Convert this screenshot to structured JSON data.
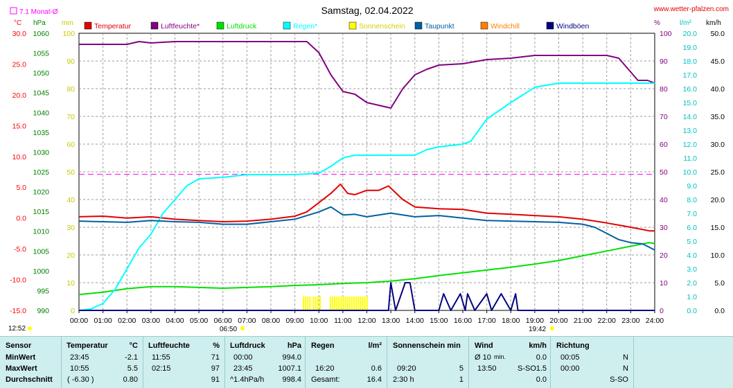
{
  "title": "Samstag, 02.04.2022",
  "source": "www.wetter-pfalzen.com",
  "monthly_avg_label": "7.1 Monat-Ø",
  "axis_units": {
    "temp": "°C",
    "press": "hPa",
    "mm": "mm",
    "percent": "%",
    "rain": "l/m²",
    "wind": "km/h"
  },
  "legend": [
    {
      "label": "Temperatur",
      "color": "#e00000"
    },
    {
      "label": "Luftfeuchte*",
      "color": "#800080"
    },
    {
      "label": "Luftdruck",
      "color": "#00e000"
    },
    {
      "label": "Regen*",
      "color": "#00ffff"
    },
    {
      "label": "Sonnenschein",
      "color": "#ffff00"
    },
    {
      "label": "Taupunkt",
      "color": "#0060a0"
    },
    {
      "label": "Windchill",
      "color": "#ff8000"
    },
    {
      "label": "Windböen",
      "color": "#000080"
    }
  ],
  "sunrise_label": "06:50",
  "sunset_label": "19:42",
  "first_time_label": "12:52",
  "chart_data": {
    "type": "line",
    "x_ticks": [
      "00:00",
      "01:00",
      "02:00",
      "03:00",
      "04:00",
      "05:00",
      "06:00",
      "07:00",
      "08:00",
      "09:00",
      "10:00",
      "11:00",
      "12:00",
      "13:00",
      "14:00",
      "15:00",
      "16:00",
      "17:00",
      "18:00",
      "19:00",
      "20:00",
      "21:00",
      "22:00",
      "23:00",
      "24:00"
    ],
    "axes": {
      "temp": {
        "ticks": [
          "30.0",
          "25.0",
          "20.0",
          "15.0",
          "10.0",
          "5.0",
          "0.0",
          "-5.0",
          "-10.0",
          "-15.0"
        ],
        "color": "#ff0000"
      },
      "press": {
        "ticks": [
          "1060",
          "1055",
          "1050",
          "1045",
          "1040",
          "1035",
          "1030",
          "1025",
          "1020",
          "1015",
          "1010",
          "1005",
          "1000",
          "995",
          "990"
        ],
        "color": "#008000"
      },
      "mm": {
        "ticks": [
          "100",
          "90",
          "80",
          "70",
          "60",
          "50",
          "40",
          "30",
          "20",
          "10",
          "0"
        ],
        "color": "#c8c800"
      },
      "percent": {
        "ticks": [
          "100",
          "90",
          "80",
          "70",
          "60",
          "50",
          "40",
          "30",
          "20",
          "10",
          "0"
        ],
        "color": "#800080"
      },
      "rain": {
        "ticks": [
          "20.0",
          "19.0",
          "18.0",
          "17.0",
          "16.0",
          "15.0",
          "14.0",
          "13.0",
          "12.0",
          "11.0",
          "10.0",
          "9.0",
          "8.0",
          "7.0",
          "6.0",
          "5.0",
          "4.0",
          "3.0",
          "2.0",
          "1.0",
          "0.0"
        ],
        "color": "#00c0c0"
      },
      "wind": {
        "ticks": [
          "50.0",
          "45.0",
          "40.0",
          "35.0",
          "30.0",
          "25.0",
          "20.0",
          "15.0",
          "10.0",
          "5.0",
          "0.0"
        ],
        "color": "#000000"
      }
    },
    "series": [
      {
        "name": "Temperatur",
        "color": "#e00000",
        "axis": "temp",
        "points": [
          [
            0,
            0.2
          ],
          [
            1,
            0.3
          ],
          [
            2,
            0.0
          ],
          [
            3,
            0.2
          ],
          [
            4,
            -0.2
          ],
          [
            5,
            -0.4
          ],
          [
            6,
            -0.6
          ],
          [
            7,
            -0.5
          ],
          [
            8,
            -0.2
          ],
          [
            9,
            0.3
          ],
          [
            9.5,
            1.0
          ],
          [
            10,
            2.5
          ],
          [
            10.5,
            4.0
          ],
          [
            10.9,
            5.5
          ],
          [
            11.2,
            4.0
          ],
          [
            11.5,
            3.8
          ],
          [
            12,
            4.5
          ],
          [
            12.5,
            4.5
          ],
          [
            12.9,
            5.2
          ],
          [
            13.5,
            3.0
          ],
          [
            14,
            1.8
          ],
          [
            15,
            1.5
          ],
          [
            16,
            1.4
          ],
          [
            17,
            0.8
          ],
          [
            18,
            0.6
          ],
          [
            19,
            0.4
          ],
          [
            20,
            0.2
          ],
          [
            21,
            -0.2
          ],
          [
            22,
            -0.8
          ],
          [
            23,
            -1.5
          ],
          [
            23.8,
            -2.1
          ],
          [
            24,
            -2.1
          ]
        ]
      },
      {
        "name": "Luftfeuchte*",
        "color": "#800080",
        "axis": "percent",
        "points": [
          [
            0,
            96
          ],
          [
            2,
            96
          ],
          [
            2.5,
            97
          ],
          [
            3,
            96.5
          ],
          [
            4,
            97
          ],
          [
            5,
            97
          ],
          [
            6,
            97
          ],
          [
            8,
            97
          ],
          [
            9.5,
            97
          ],
          [
            10,
            93
          ],
          [
            10.5,
            85
          ],
          [
            11,
            79
          ],
          [
            11.5,
            78
          ],
          [
            12,
            75
          ],
          [
            12.5,
            74
          ],
          [
            13,
            73
          ],
          [
            13.5,
            80
          ],
          [
            14,
            85
          ],
          [
            14.5,
            87
          ],
          [
            15,
            88.5
          ],
          [
            16,
            89
          ],
          [
            17,
            90.5
          ],
          [
            18,
            91
          ],
          [
            19,
            92
          ],
          [
            20,
            92
          ],
          [
            21,
            92
          ],
          [
            22,
            92
          ],
          [
            22.5,
            91
          ],
          [
            23,
            86
          ],
          [
            23.3,
            83
          ],
          [
            23.7,
            83
          ],
          [
            24,
            82
          ]
        ]
      },
      {
        "name": "Luftdruck",
        "color": "#00e000",
        "axis": "press",
        "points": [
          [
            0,
            994.0
          ],
          [
            1,
            994.6
          ],
          [
            2,
            995.5
          ],
          [
            3,
            996
          ],
          [
            4,
            996
          ],
          [
            5,
            995.8
          ],
          [
            6,
            995.6
          ],
          [
            7,
            995.8
          ],
          [
            8,
            996
          ],
          [
            9,
            996.3
          ],
          [
            10,
            996.5
          ],
          [
            11,
            996.8
          ],
          [
            12,
            997.0
          ],
          [
            13,
            997.4
          ],
          [
            14,
            998.0
          ],
          [
            15,
            998.8
          ],
          [
            16,
            999.5
          ],
          [
            17,
            1000.2
          ],
          [
            18,
            1000.9
          ],
          [
            19,
            1001.7
          ],
          [
            20,
            1002.6
          ],
          [
            21,
            1003.8
          ],
          [
            22,
            1005.0
          ],
          [
            23,
            1006.2
          ],
          [
            23.75,
            1007.1
          ],
          [
            24,
            1006.9
          ]
        ]
      },
      {
        "name": "Regen*",
        "color": "#00ffff",
        "axis": "rain",
        "points": [
          [
            0,
            0
          ],
          [
            0.5,
            0.1
          ],
          [
            1,
            0.5
          ],
          [
            1.5,
            1.5
          ],
          [
            2,
            3
          ],
          [
            2.5,
            4.5
          ],
          [
            3,
            5.5
          ],
          [
            3.5,
            7
          ],
          [
            4,
            8
          ],
          [
            4.5,
            9
          ],
          [
            5,
            9.5
          ],
          [
            6,
            9.6
          ],
          [
            7,
            9.8
          ],
          [
            8,
            9.8
          ],
          [
            9,
            9.8
          ],
          [
            10,
            9.9
          ],
          [
            10.5,
            10.4
          ],
          [
            11,
            11.0
          ],
          [
            11.5,
            11.2
          ],
          [
            12,
            11.2
          ],
          [
            13,
            11.2
          ],
          [
            14,
            11.2
          ],
          [
            14.5,
            11.6
          ],
          [
            15,
            11.8
          ],
          [
            16,
            12.0
          ],
          [
            16.33,
            12.2
          ],
          [
            17,
            13.8
          ],
          [
            18,
            15.0
          ],
          [
            19,
            16.1
          ],
          [
            20,
            16.4
          ],
          [
            20.5,
            16.4
          ],
          [
            21,
            16.4
          ],
          [
            24,
            16.4
          ]
        ]
      },
      {
        "name": "Taupunkt",
        "color": "#0060a0",
        "axis": "temp",
        "points": [
          [
            0,
            -0.5
          ],
          [
            1,
            -0.6
          ],
          [
            2,
            -0.7
          ],
          [
            3,
            -0.4
          ],
          [
            4,
            -0.6
          ],
          [
            5,
            -0.7
          ],
          [
            6,
            -1.0
          ],
          [
            7,
            -1.0
          ],
          [
            8,
            -0.6
          ],
          [
            9,
            -0.2
          ],
          [
            10,
            1.0
          ],
          [
            10.5,
            1.8
          ],
          [
            11,
            0.5
          ],
          [
            11.5,
            0.6
          ],
          [
            12,
            0.2
          ],
          [
            12.5,
            0.5
          ],
          [
            13,
            0.8
          ],
          [
            14,
            0.2
          ],
          [
            15,
            0.4
          ],
          [
            16,
            0.0
          ],
          [
            17,
            -0.4
          ],
          [
            18,
            -0.5
          ],
          [
            19,
            -0.6
          ],
          [
            20,
            -0.7
          ],
          [
            21,
            -1.0
          ],
          [
            21.5,
            -1.5
          ],
          [
            22,
            -2.5
          ],
          [
            22.5,
            -3.5
          ],
          [
            23,
            -4.0
          ],
          [
            23.5,
            -4.2
          ],
          [
            24,
            -5.2
          ]
        ]
      },
      {
        "name": "Windböen",
        "color": "#000080",
        "axis": "wind",
        "points": [
          [
            0,
            0
          ],
          [
            12.9,
            0
          ],
          [
            13,
            5
          ],
          [
            13.2,
            0
          ],
          [
            13.6,
            5
          ],
          [
            13.8,
            5
          ],
          [
            14,
            0
          ],
          [
            15,
            0
          ],
          [
            15.2,
            3
          ],
          [
            15.5,
            0
          ],
          [
            15.9,
            3
          ],
          [
            16.1,
            0
          ],
          [
            16.2,
            3
          ],
          [
            16.5,
            0
          ],
          [
            17,
            3
          ],
          [
            17.2,
            0
          ],
          [
            17.6,
            3
          ],
          [
            18,
            0
          ],
          [
            18.2,
            3
          ],
          [
            18.3,
            0
          ],
          [
            24,
            0
          ]
        ]
      }
    ],
    "sunshine_hours": [
      [
        9.33,
        9.6
      ],
      [
        9.75,
        10.05
      ],
      [
        10.45,
        12.05
      ]
    ],
    "monthly_avg_temp": 7.1
  },
  "stats": {
    "headers": {
      "sensor": "Sensor",
      "temp": "Temperatur",
      "temp_unit": "°C",
      "hum": "Luftfeuchte",
      "hum_unit": "%",
      "press": "Luftdruck",
      "press_unit": "hPa",
      "rain": "Regen",
      "rain_unit": "l/m²",
      "sun": "Sonnenschein min",
      "wind": "Wind",
      "wind_unit": "km/h",
      "dir": "Richtung"
    },
    "rows": [
      {
        "label": "MinWert",
        "temp_time": "23:45",
        "temp": "-2.1",
        "hum_time": "11:55",
        "hum": "71",
        "press_time": "00:00",
        "press": "994.0",
        "rain_time": "",
        "rain": "",
        "sun_time": "",
        "sun": "",
        "wind_time": "Ø 10",
        "wind_sub": "min.",
        "wind_dir": "",
        "wind": "0.0",
        "dir_time": "00:05",
        "dir": "N"
      },
      {
        "label": "MaxWert",
        "temp_time": "10:55",
        "temp": "5.5",
        "hum_time": "02:15",
        "hum": "97",
        "press_time": "23:45",
        "press": "1007.1",
        "rain_time": "16:20",
        "rain": "0.6",
        "sun_time": "09:20",
        "sun": "5",
        "wind_time": "13:50",
        "wind_sub": "",
        "wind_dir": "S-SO",
        "wind": "1.5",
        "dir_time": "00:00",
        "dir": "N"
      },
      {
        "label": "Durchschnitt",
        "temp_time": "( -6.30 )",
        "temp": "0.80",
        "hum_time": "",
        "hum": "91",
        "press_time": "^1.4hPa/h",
        "press": "998.4",
        "rain_time": "Gesamt:",
        "rain": "16.4",
        "sun_time": "2:30 h",
        "sun": "1",
        "wind_time": "",
        "wind_sub": "",
        "wind_dir": "",
        "wind": "0.0",
        "dir_time": "",
        "dir": "S-SO"
      }
    ]
  }
}
